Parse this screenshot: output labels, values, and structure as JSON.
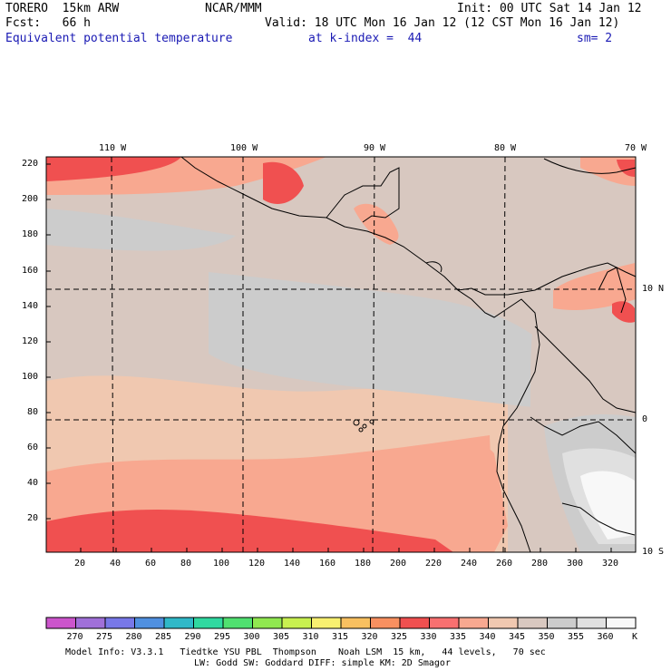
{
  "header": {
    "model": "TORERO  15km ARW",
    "org": "NCAR/MMM",
    "init": "Init: 00 UTC Sat 14 Jan 12",
    "fcst": "Fcst:   66 h",
    "valid": "Valid: 18 UTC Mon 16 Jan 12 (12 CST Mon 16 Jan 12)",
    "field": "Equivalent potential temperature",
    "level": "at k-index =  44",
    "smooth": "sm= 2"
  },
  "map": {
    "lon_labels": [
      "110 W",
      "100 W",
      "90 W",
      "80 W",
      "70 W"
    ],
    "lat_labels": [
      "10 N",
      "0",
      "10 S"
    ],
    "y_ticks": [
      "20",
      "40",
      "60",
      "80",
      "100",
      "120",
      "140",
      "160",
      "180",
      "200",
      "220"
    ],
    "x_ticks": [
      "20",
      "40",
      "60",
      "80",
      "100",
      "120",
      "140",
      "160",
      "180",
      "200",
      "220",
      "240",
      "260",
      "280",
      "300",
      "320"
    ]
  },
  "colorbar": {
    "labels": [
      "270",
      "275",
      "280",
      "285",
      "290",
      "295",
      "300",
      "305",
      "310",
      "315",
      "320",
      "325",
      "330",
      "335",
      "340",
      "345",
      "350",
      "355",
      "360"
    ],
    "unit": "K",
    "colors": [
      "#cc55cc",
      "#a070d8",
      "#7878e8",
      "#5090e0",
      "#30b8c8",
      "#30d8a0",
      "#50e070",
      "#90e850",
      "#c8f050",
      "#f8f070",
      "#f8c060",
      "#f89060",
      "#f05050",
      "#f87070",
      "#f8a890",
      "#f0c8b0",
      "#d8c8c0",
      "#cccccc",
      "#e0e0e0",
      "#f8f8f8"
    ]
  },
  "footer": {
    "line1": "Model Info: V3.3.1   Tiedtke YSU PBL  Thompson    Noah LSM  15 km,   44 levels,   70 sec",
    "line2": "LW: Godd SW: Goddard DIFF: simple KM: 2D Smagor"
  }
}
